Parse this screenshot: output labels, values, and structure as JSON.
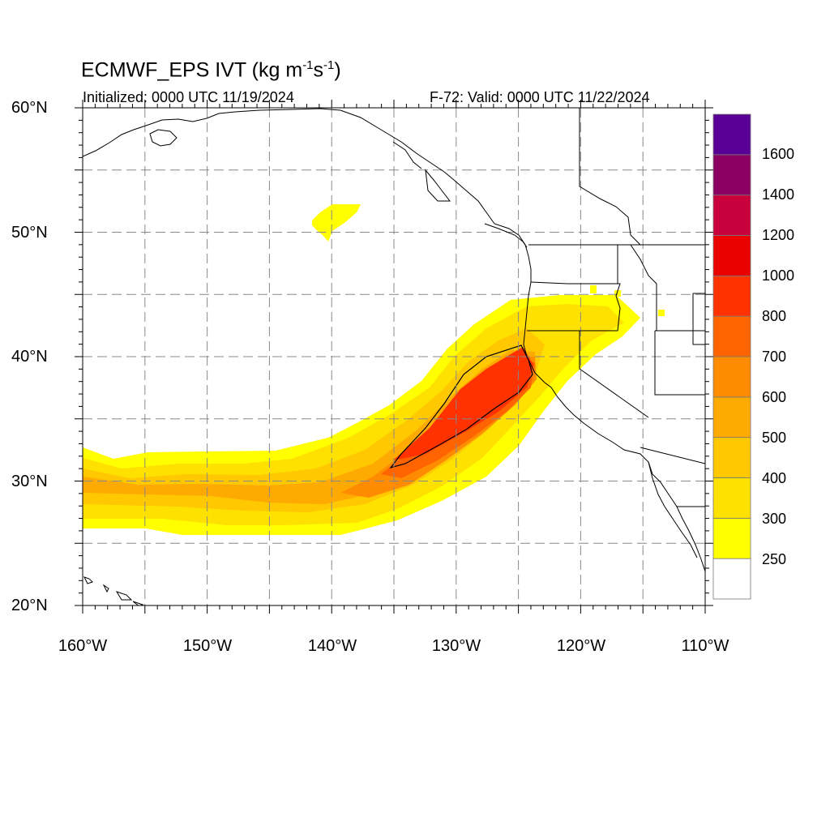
{
  "header": {
    "title_main": "ECMWF_EPS IVT (kg m",
    "title_sup1": "-1",
    "title_mid": "s",
    "title_sup2": "-1",
    "title_end": ")",
    "initialized": "Initialized: 0000 UTC 11/19/2024",
    "valid": "F-72: Valid: 0000 UTC 11/22/2024"
  },
  "map": {
    "lon_range": [
      -160,
      -110
    ],
    "lat_range": [
      20,
      60
    ],
    "lat_ticks": [
      {
        "value": 60,
        "label": "60°N"
      },
      {
        "value": 50,
        "label": "50°N"
      },
      {
        "value": 40,
        "label": "40°N"
      },
      {
        "value": 30,
        "label": "30°N"
      },
      {
        "value": 20,
        "label": "20°N"
      }
    ],
    "lon_ticks": [
      {
        "value": -160,
        "label": "160°W"
      },
      {
        "value": -150,
        "label": "150°W"
      },
      {
        "value": -140,
        "label": "140°W"
      },
      {
        "value": -130,
        "label": "130°W"
      },
      {
        "value": -120,
        "label": "120°W"
      },
      {
        "value": -110,
        "label": "110°W"
      }
    ],
    "grid_lats": [
      25,
      30,
      35,
      40,
      45,
      50,
      55
    ],
    "grid_lons": [
      -155,
      -150,
      -145,
      -140,
      -135,
      -130,
      -125,
      -120,
      -115
    ]
  },
  "colorbar": {
    "levels": [
      "250",
      "300",
      "400",
      "500",
      "600",
      "700",
      "800",
      "1000",
      "1200",
      "1400",
      "1600"
    ],
    "colors": [
      "#ffffff",
      "#ffff00",
      "#ffe100",
      "#ffc800",
      "#ffaa00",
      "#ff8c00",
      "#ff6400",
      "#ff3200",
      "#eb0000",
      "#c8003c",
      "#8c0064",
      "#5a0096"
    ]
  }
}
